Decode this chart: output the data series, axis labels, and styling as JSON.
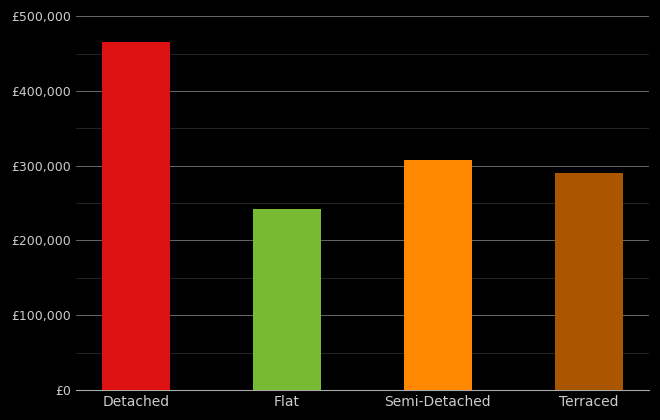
{
  "categories": [
    "Detached",
    "Flat",
    "Semi-Detached",
    "Terraced"
  ],
  "values": [
    465000,
    242000,
    307000,
    290000
  ],
  "bar_colors": [
    "#dd1111",
    "#77bb33",
    "#ff8800",
    "#aa5500"
  ],
  "background_color": "#000000",
  "text_color": "#cccccc",
  "grid_color_major": "#666666",
  "grid_color_minor": "#333333",
  "ylim": [
    0,
    500000
  ],
  "yticks_major": [
    0,
    100000,
    200000,
    300000,
    400000,
    500000
  ],
  "yticks_minor": [
    50000,
    150000,
    250000,
    350000,
    450000
  ],
  "bar_width": 0.45,
  "figsize": [
    6.6,
    4.2
  ],
  "dpi": 100
}
